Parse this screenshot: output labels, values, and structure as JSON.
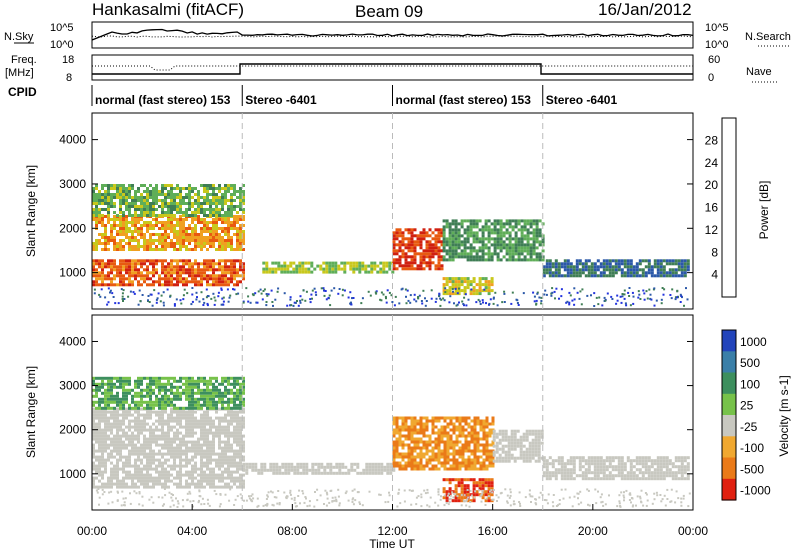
{
  "header": {
    "radar": "Hankasalmi (fitACF)",
    "beam": "Beam 09",
    "date": "16/Jan/2012"
  },
  "noise_panel": {
    "left_label": "N.Sky",
    "right_label": "N.Search",
    "left_ticks": [
      "10^5",
      "10^0"
    ],
    "right_ticks": [
      "10^5",
      "10^0"
    ]
  },
  "freq_panel": {
    "left_label_1": "Freq.",
    "left_label_2": "[MHz]",
    "left_ticks": [
      "18",
      "8"
    ],
    "right_label": "Nave",
    "right_ticks": [
      "60",
      "0"
    ]
  },
  "cpid": {
    "label": "CPID",
    "segments": [
      {
        "start": 0,
        "end": 6,
        "text": "normal (fast stereo) 153"
      },
      {
        "start": 6,
        "end": 12,
        "text": "Stereo -6401"
      },
      {
        "start": 12,
        "end": 18,
        "text": "normal (fast stereo) 153"
      },
      {
        "start": 18,
        "end": 24,
        "text": "Stereo -6401"
      }
    ]
  },
  "x_axis": {
    "label": "Time UT",
    "ticks": [
      "00:00",
      "04:00",
      "08:00",
      "12:00",
      "16:00",
      "20:00",
      "00:00"
    ]
  },
  "power_panel": {
    "ylabel": "Slant Range [km]",
    "yticks": [
      "4000",
      "3000",
      "2000",
      "1000"
    ],
    "colorbar_label": "Power [dB]",
    "colorbar_ticks": [
      "28",
      "24",
      "20",
      "16",
      "12",
      "8",
      "4"
    ],
    "colors": [
      "#2233dd",
      "#2b58a8",
      "#3f7e55",
      "#5fae58",
      "#c8c81c",
      "#f0a020",
      "#e85a10",
      "#d02010"
    ]
  },
  "velocity_panel": {
    "ylabel": "Slant Range [km]",
    "yticks": [
      "4000",
      "3000",
      "2000",
      "1000"
    ],
    "colorbar_label": "Velocity [m s-1]",
    "colorbar_ticks": [
      "1000",
      "500",
      "100",
      "25",
      "-25",
      "-100",
      "-500",
      "-1000"
    ],
    "colors": [
      "#2244bb",
      "#3a7fa8",
      "#3d8f5e",
      "#77c24a",
      "#c8c8c0",
      "#f0a830",
      "#ea7a18",
      "#e02010"
    ]
  },
  "chart_data": {
    "type": "heatmap",
    "x_range_hours": [
      0,
      24
    ],
    "y_range_km": [
      180,
      4600
    ],
    "power_regions_db": [
      {
        "t0": 0.0,
        "t1": 6.0,
        "r0": 700,
        "r1": 1300,
        "value": 26
      },
      {
        "t0": 0.0,
        "t1": 6.0,
        "r0": 1500,
        "r1": 2300,
        "value": 22
      },
      {
        "t0": 0.0,
        "t1": 6.0,
        "r0": 2300,
        "r1": 3000,
        "value": 14
      },
      {
        "t0": 6.8,
        "t1": 12.0,
        "r0": 1000,
        "r1": 1250,
        "value": 16
      },
      {
        "t0": 12.0,
        "t1": 14.0,
        "r0": 1100,
        "r1": 2000,
        "value": 28
      },
      {
        "t0": 14.0,
        "t1": 18.0,
        "r0": 1300,
        "r1": 2200,
        "value": 12
      },
      {
        "t0": 14.0,
        "t1": 16.0,
        "r0": 500,
        "r1": 900,
        "value": 18
      },
      {
        "t0": 18.0,
        "t1": 23.8,
        "r0": 900,
        "r1": 1300,
        "value": 8
      }
    ],
    "velocity_regions_ms": [
      {
        "t0": 0.0,
        "t1": 6.0,
        "r0": 700,
        "r1": 2500,
        "value": 0
      },
      {
        "t0": 0.0,
        "t1": 6.0,
        "r0": 2500,
        "r1": 3200,
        "value": 100
      },
      {
        "t0": 6.0,
        "t1": 12.0,
        "r0": 1000,
        "r1": 1250,
        "value": 0
      },
      {
        "t0": 12.0,
        "t1": 16.0,
        "r0": 1100,
        "r1": 2300,
        "value": -100
      },
      {
        "t0": 14.0,
        "t1": 16.0,
        "r0": 400,
        "r1": 900,
        "value": -500
      },
      {
        "t0": 16.0,
        "t1": 18.0,
        "r0": 1300,
        "r1": 2000,
        "value": 0
      },
      {
        "t0": 18.0,
        "t1": 23.8,
        "r0": 900,
        "r1": 1400,
        "value": 0
      }
    ]
  }
}
